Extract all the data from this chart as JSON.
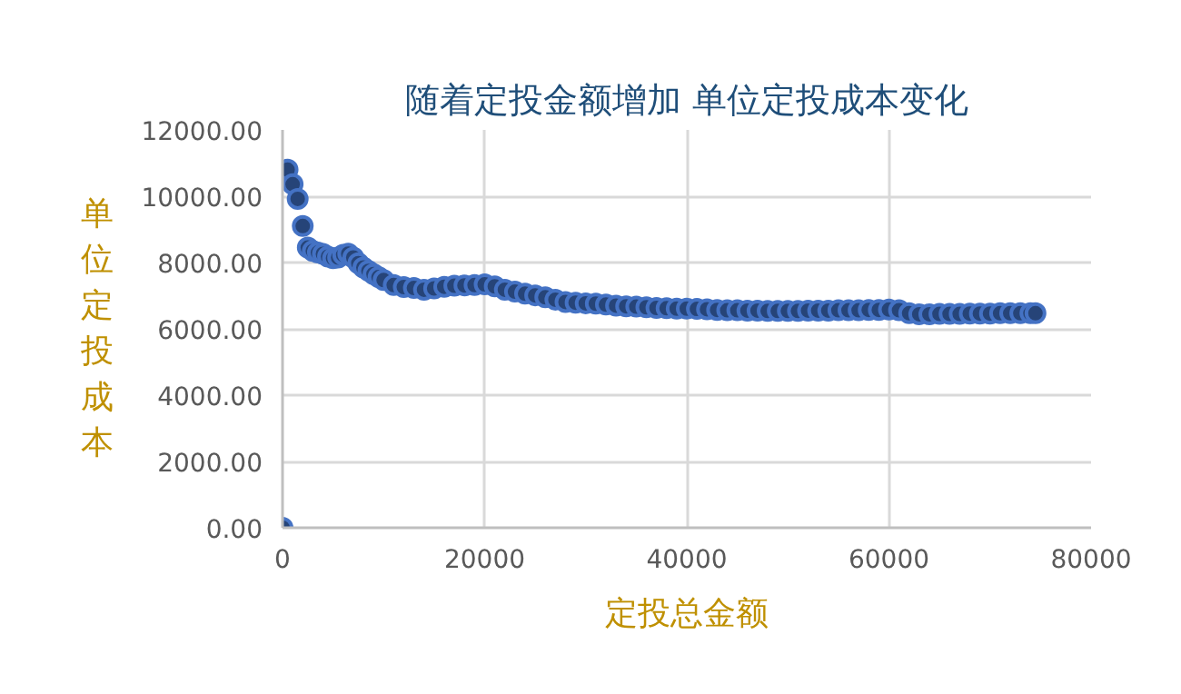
{
  "chart_data": {
    "type": "scatter",
    "title": "随着定投金额增加 单位定投成本变化",
    "xlabel": "定投总金额",
    "ylabel": "单位定投成本",
    "x": [
      0,
      500,
      1000,
      1500,
      2000,
      2500,
      3000,
      3500,
      4000,
      4500,
      5000,
      5500,
      6000,
      6500,
      7000,
      7500,
      8000,
      8500,
      9000,
      9500,
      10000,
      11000,
      12000,
      13000,
      14000,
      15000,
      16000,
      17000,
      18000,
      19000,
      20000,
      21000,
      22000,
      23000,
      24000,
      25000,
      26000,
      27000,
      28000,
      29000,
      30000,
      31000,
      32000,
      33000,
      34000,
      35000,
      36000,
      37000,
      38000,
      39000,
      40000,
      41000,
      42000,
      43000,
      44000,
      45000,
      46000,
      47000,
      48000,
      49000,
      50000,
      51000,
      52000,
      53000,
      54000,
      55000,
      56000,
      57000,
      58000,
      59000,
      60000,
      61000,
      62000,
      63000,
      64000,
      65000,
      66000,
      67000,
      68000,
      69000,
      70000,
      71000,
      72000,
      73000,
      74000,
      74500
    ],
    "series": [
      {
        "color": "#4472c4",
        "values": [
          0,
          10800,
          10360,
          9920,
          9100,
          8450,
          8350,
          8300,
          8260,
          8180,
          8130,
          8150,
          8230,
          8270,
          8150,
          7980,
          7850,
          7750,
          7650,
          7560,
          7470,
          7320,
          7260,
          7230,
          7180,
          7220,
          7270,
          7300,
          7310,
          7320,
          7340,
          7280,
          7180,
          7120,
          7060,
          7010,
          6950,
          6880,
          6810,
          6790,
          6770,
          6760,
          6730,
          6700,
          6680,
          6670,
          6650,
          6630,
          6620,
          6610,
          6610,
          6600,
          6590,
          6570,
          6560,
          6560,
          6550,
          6550,
          6540,
          6540,
          6540,
          6540,
          6550,
          6550,
          6550,
          6560,
          6560,
          6560,
          6570,
          6570,
          6580,
          6560,
          6470,
          6440,
          6440,
          6450,
          6450,
          6450,
          6460,
          6460,
          6460,
          6470,
          6470,
          6470,
          6470,
          6470
        ]
      }
    ],
    "xlim": [
      0,
      80000
    ],
    "xticks": [
      0,
      20000,
      40000,
      60000,
      80000
    ],
    "ylim": [
      0,
      12000
    ],
    "yticks": [
      {
        "value": 0,
        "label": "0.00"
      },
      {
        "value": 2000,
        "label": "2000.00"
      },
      {
        "value": 4000,
        "label": "4000.00"
      },
      {
        "value": 6000,
        "label": "6000.00"
      },
      {
        "value": 8000,
        "label": "8000.00"
      },
      {
        "value": 10000,
        "label": "10000.00"
      },
      {
        "value": 12000,
        "label": "12000.00"
      }
    ],
    "grid": true,
    "marker": "circle"
  }
}
